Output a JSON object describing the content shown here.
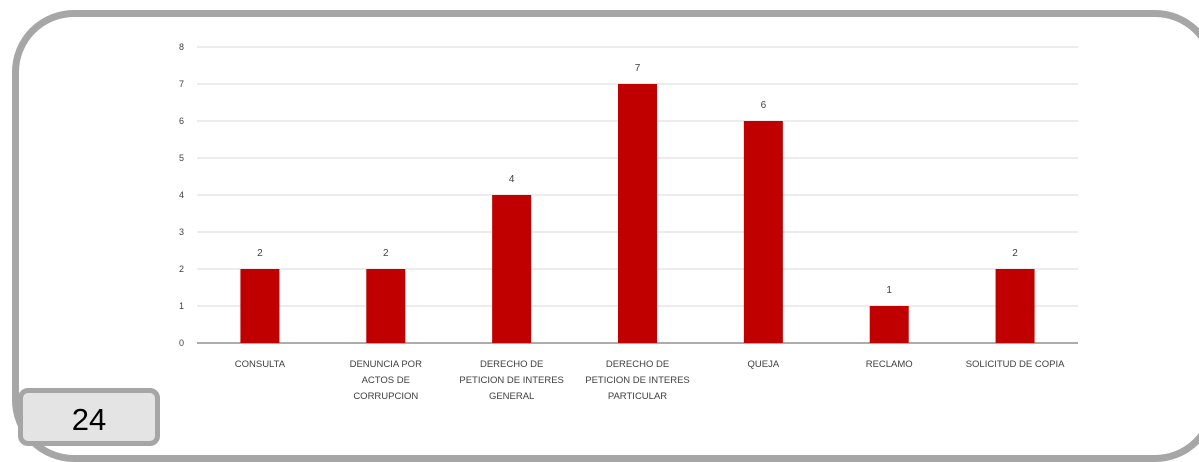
{
  "page": {
    "number": "24"
  },
  "colors": {
    "bar": "#c00000",
    "frame": "#a6a6a6",
    "gridline": "#d9d9d9",
    "axis": "#595959"
  },
  "chart_data": {
    "type": "bar",
    "categories": [
      [
        "CONSULTA"
      ],
      [
        "DENUNCIA POR",
        "ACTOS DE",
        "CORRUPCION"
      ],
      [
        "DERECHO DE",
        "PETICION DE INTERES",
        "GENERAL"
      ],
      [
        "DERECHO DE",
        "PETICION DE INTERES",
        "PARTICULAR"
      ],
      [
        "QUEJA"
      ],
      [
        "RECLAMO"
      ],
      [
        "SOLICITUD DE COPIA"
      ]
    ],
    "values": [
      2,
      2,
      4,
      7,
      6,
      1,
      2
    ],
    "data_labels": [
      "2",
      "2",
      "4",
      "7",
      "6",
      "1",
      "2"
    ],
    "y_ticks": [
      "0",
      "1",
      "2",
      "3",
      "4",
      "5",
      "6",
      "7",
      "8"
    ],
    "ylim": [
      0,
      8
    ],
    "grid": true,
    "title": "",
    "xlabel": "",
    "ylabel": ""
  }
}
